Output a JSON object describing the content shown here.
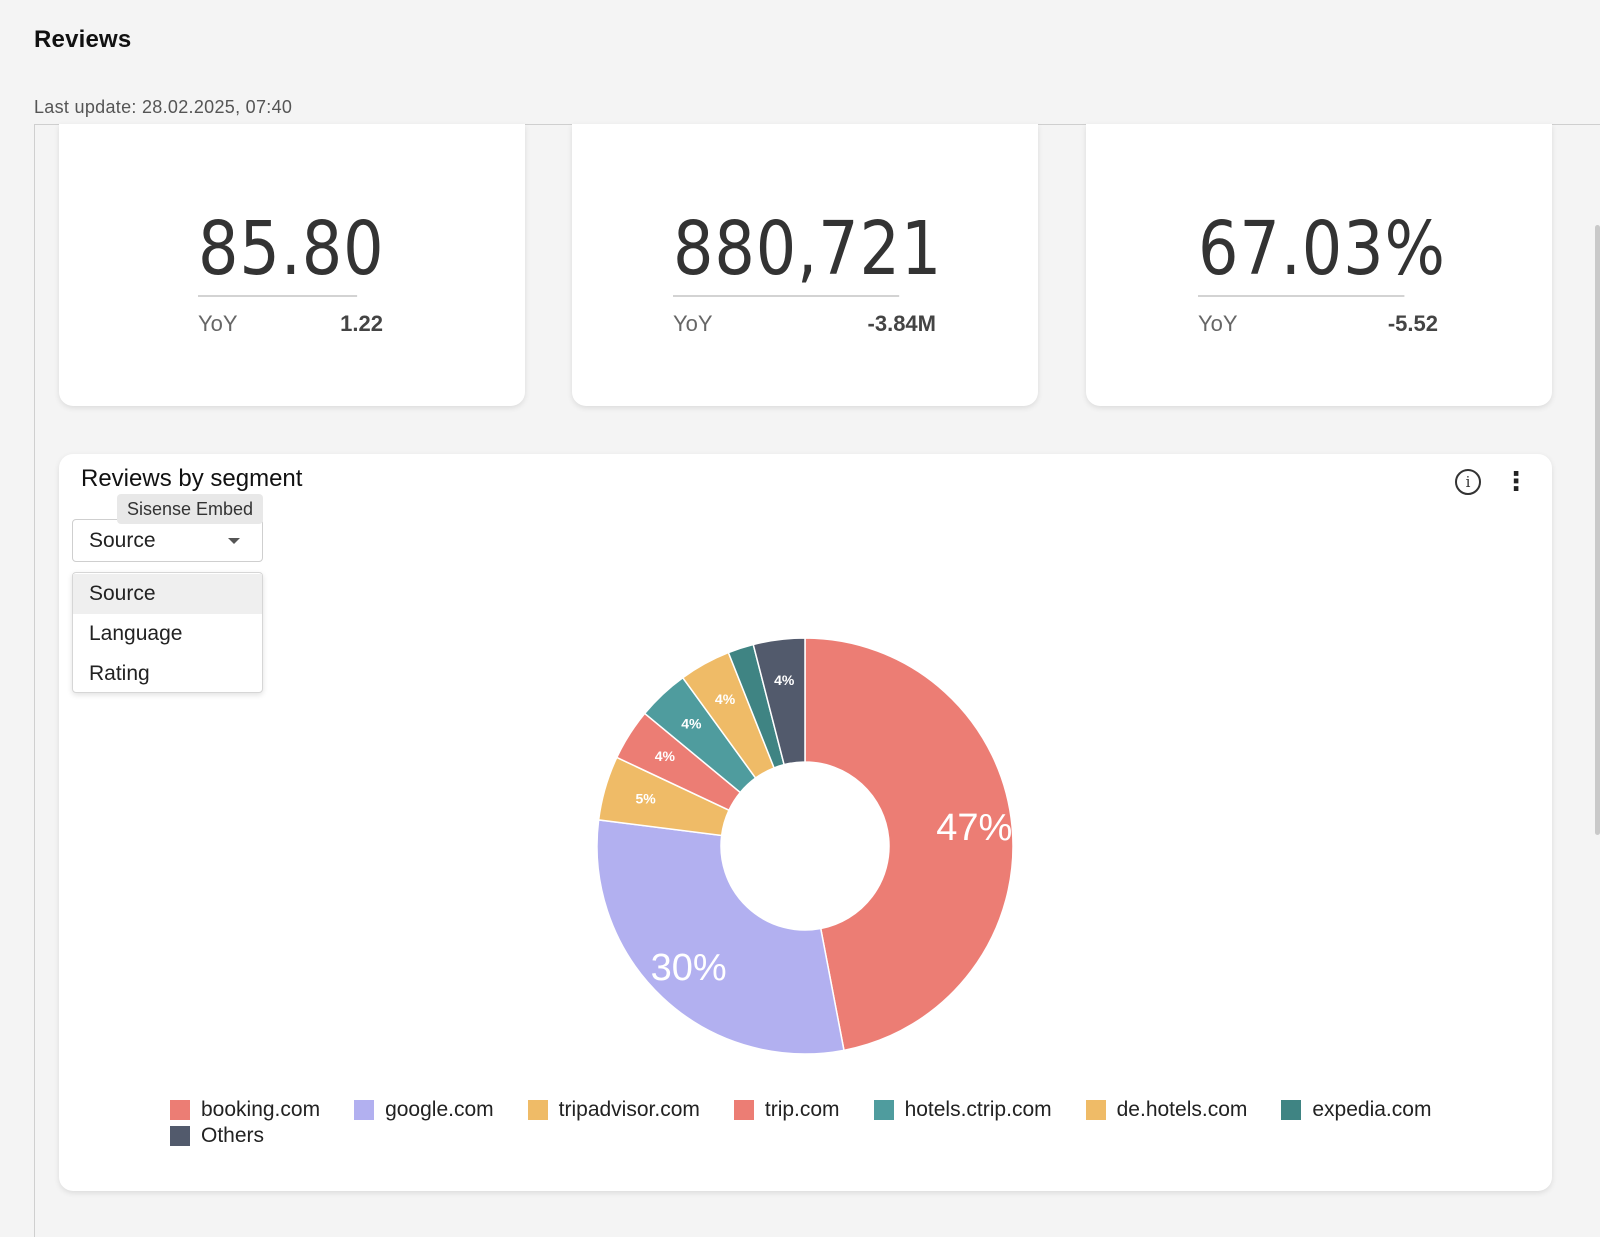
{
  "page": {
    "title": "Reviews",
    "last_update": "Last update: 28.02.2025, 07:40"
  },
  "kpis": [
    {
      "value": "85.80",
      "delta_label": "YoY",
      "delta": "1.22"
    },
    {
      "value": "880,721",
      "delta_label": "YoY",
      "delta": "-3.84M"
    },
    {
      "value": "67.03%",
      "delta_label": "YoY",
      "delta": "-5.52"
    }
  ],
  "segment_card": {
    "title": "Reviews by segment",
    "tooltip": "Sisense Embed",
    "info_icon": "info-icon",
    "menu_icon": "more-vertical-icon",
    "select": {
      "value": "Source",
      "options": [
        "Source",
        "Language",
        "Rating"
      ]
    }
  },
  "chart_data": {
    "type": "pie",
    "donut": true,
    "categories": [
      "booking.com",
      "google.com",
      "tripadvisor.com",
      "trip.com",
      "hotels.ctrip.com",
      "de.hotels.com",
      "expedia.com",
      "Others"
    ],
    "values": [
      47,
      30,
      5,
      4,
      4,
      4,
      2,
      4
    ],
    "labels": [
      "47%",
      "30%",
      "5%",
      "4%",
      "4%",
      "4%",
      "",
      "4%"
    ],
    "colors": [
      "#ec7d74",
      "#b2b0f0",
      "#efbb67",
      "#ec7d74",
      "#4f9c9e",
      "#efbb67",
      "#3f8483",
      "#525a6c"
    ],
    "legend_position": "bottom"
  }
}
